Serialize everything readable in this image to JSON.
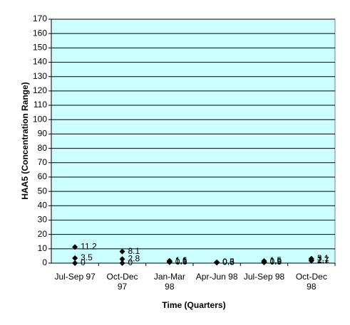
{
  "chart_data": {
    "type": "scatter",
    "y_label": "HAA5 (Concentration Range)",
    "x_label": "Time (Quarters)",
    "categories": [
      "Jul-Sep 97",
      "Oct-Dec\n97",
      "Jan-Mar\n98",
      "Apr-Jun 98",
      "Jul-Sep 98",
      "Oct-Dec\n98"
    ],
    "series": [
      {
        "color": "#000000",
        "values": [
          11.2,
          8.1,
          1.6,
          0.6,
          1.5,
          3.1
        ]
      },
      {
        "color": "#000000",
        "values": [
          3.5,
          2.8,
          1.1,
          0.5,
          0.9,
          2.1
        ]
      },
      {
        "color": "#000000",
        "values": [
          0,
          0,
          0.6,
          0.3,
          0.5,
          1.7
        ]
      }
    ],
    "ylim": [
      0,
      170
    ],
    "yticks": [
      0,
      10,
      20,
      30,
      40,
      50,
      60,
      70,
      80,
      90,
      100,
      110,
      120,
      130,
      140,
      150,
      160,
      170
    ],
    "grid": true,
    "plot_color": "#ccffff"
  }
}
